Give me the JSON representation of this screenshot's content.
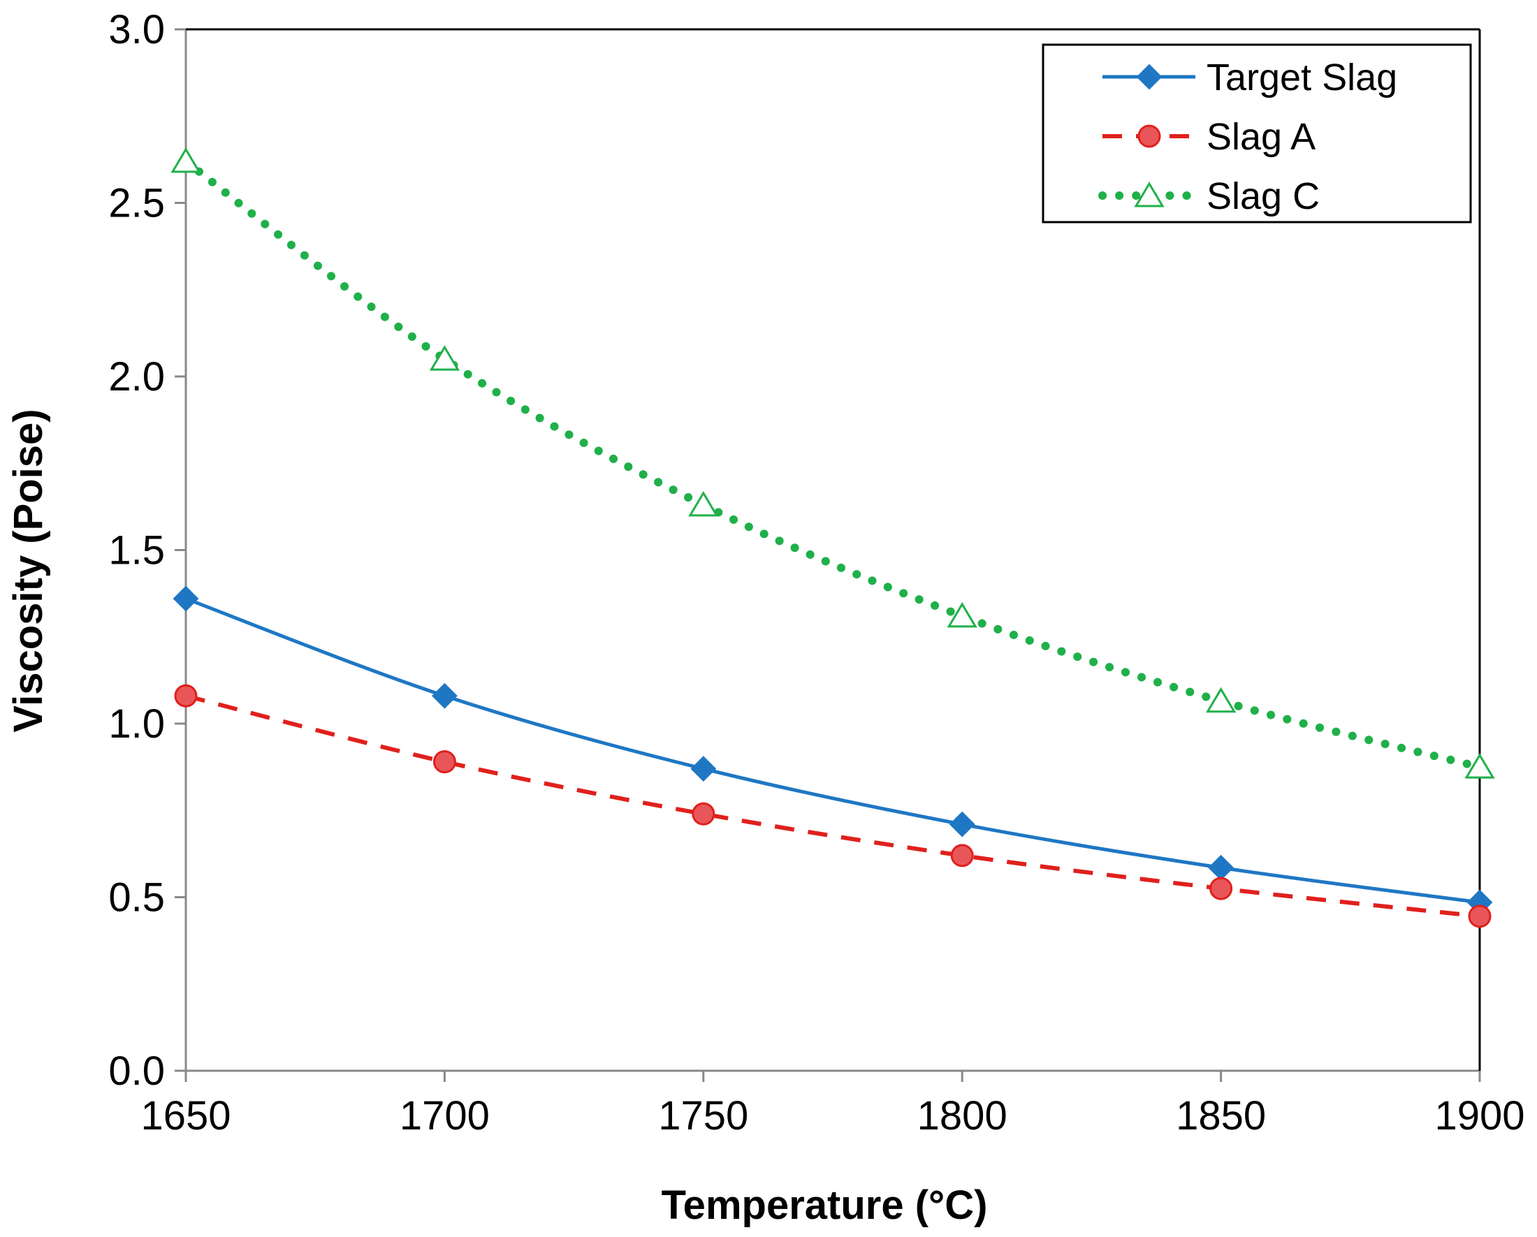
{
  "chart_data": {
    "type": "line",
    "title": "",
    "xlabel": "Temperature (°C)",
    "ylabel": "Viscosity (Poise)",
    "xlim": [
      1650,
      1900
    ],
    "ylim": [
      0,
      3.0
    ],
    "x": [
      1650,
      1700,
      1750,
      1800,
      1850,
      1900
    ],
    "x_ticks": [
      1650,
      1700,
      1750,
      1800,
      1850,
      1900
    ],
    "x_tick_labels": [
      "1650",
      "1700",
      "1750",
      "1800",
      "1850",
      "1900"
    ],
    "y_ticks": [
      0,
      0.5,
      1.0,
      1.5,
      2.0,
      2.5,
      3.0
    ],
    "y_tick_labels": [
      "0.0",
      "0.5",
      "1.0",
      "1.5",
      "2.0",
      "2.5",
      "3.0"
    ],
    "grid": false,
    "legend_position": "top-right",
    "series": [
      {
        "name": "Target Slag",
        "values": [
          1.36,
          1.08,
          0.87,
          0.71,
          0.585,
          0.485
        ],
        "color": "#1f77c4",
        "line_style": "solid",
        "marker": "diamond"
      },
      {
        "name": "Slag A",
        "values": [
          1.08,
          0.89,
          0.74,
          0.62,
          0.525,
          0.445
        ],
        "color": "#e0201c",
        "marker_fill": "#e8565a",
        "line_style": "dashed",
        "marker": "circle"
      },
      {
        "name": "Slag C",
        "values": [
          2.62,
          2.05,
          1.63,
          1.31,
          1.065,
          0.875
        ],
        "color": "#1fb04a",
        "line_style": "dotted",
        "marker": "triangle-open"
      }
    ]
  }
}
